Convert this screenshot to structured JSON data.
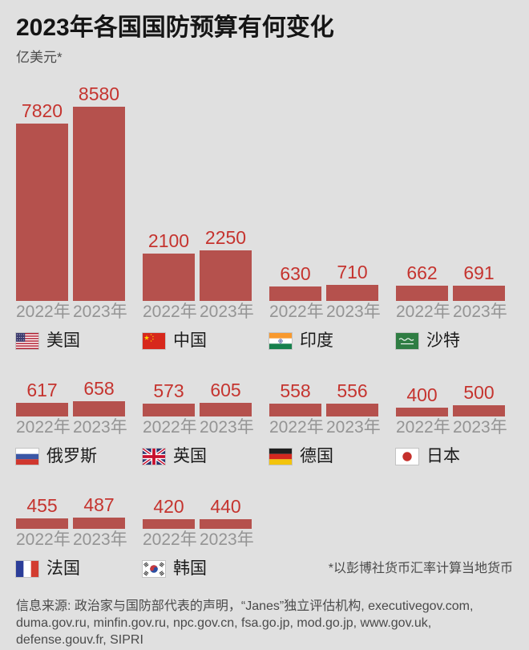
{
  "page": {
    "title": "2023年各国国防预算有何变化",
    "subtitle": "亿美元*",
    "footnote": "*以彭博社货币汇率计算当地货币",
    "source_lines": [
      "信息来源: 政治家与国防部代表的声明，“Janes”独立评估机构, executivegov.com,",
      "duma.gov.ru, minfin.gov.ru, npc.gov.cn, fsa.go.jp, mod.go.jp, www.gov.uk,",
      "defense.gouv.fr, SIPRI"
    ]
  },
  "colors": {
    "background": "#e0e0e0",
    "bar": "#b5514d",
    "value_label": "#c5342f",
    "year_label": "#949494",
    "country_label": "#1b1b1b",
    "title": "#151515",
    "muted_text": "#4a4a4a"
  },
  "chart_data": {
    "type": "bar",
    "title": "2023年各国国防预算有何变化",
    "unit": "亿美元",
    "categories": [
      "2022年",
      "2023年"
    ],
    "ymax": 8580,
    "grid": false,
    "legend_position": "below-group",
    "layout_rows": [
      4,
      4,
      2
    ],
    "groups": [
      {
        "country": "美国",
        "flag": "us",
        "values": [
          7820,
          8580
        ]
      },
      {
        "country": "中国",
        "flag": "cn",
        "values": [
          2100,
          2250
        ]
      },
      {
        "country": "印度",
        "flag": "in",
        "values": [
          630,
          710
        ]
      },
      {
        "country": "沙特",
        "flag": "sa",
        "values": [
          662,
          691
        ]
      },
      {
        "country": "俄罗斯",
        "flag": "ru",
        "values": [
          617,
          658
        ]
      },
      {
        "country": "英国",
        "flag": "gb",
        "values": [
          573,
          605
        ]
      },
      {
        "country": "德国",
        "flag": "de",
        "values": [
          558,
          556
        ]
      },
      {
        "country": "日本",
        "flag": "jp",
        "values": [
          400,
          500
        ]
      },
      {
        "country": "法国",
        "flag": "fr",
        "values": [
          455,
          487
        ]
      },
      {
        "country": "韩国",
        "flag": "kr",
        "values": [
          420,
          440
        ]
      }
    ]
  }
}
